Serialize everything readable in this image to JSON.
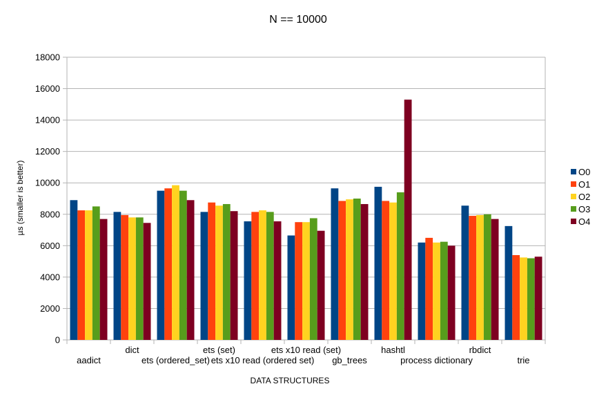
{
  "chart_data": {
    "type": "bar",
    "title": "N == 10000",
    "xlabel": "DATA STRUCTURES",
    "ylabel": "µs (smaller is better)",
    "ylim": [
      0,
      18000
    ],
    "yticks": [
      0,
      2000,
      4000,
      6000,
      8000,
      10000,
      12000,
      14000,
      16000,
      18000
    ],
    "grid": true,
    "legend_position": "right",
    "categories": [
      "aadict",
      "dict",
      "ets (ordered_set)",
      "ets (set)",
      "ets x10 read (ordered set)",
      "ets x10 read (set)",
      "gb_trees",
      "hashtl",
      "process dictionary",
      "rbdict",
      "trie"
    ],
    "series": [
      {
        "name": "O0",
        "color": "#004586",
        "values": [
          8900,
          8150,
          9500,
          8150,
          7550,
          6650,
          9650,
          9750,
          6200,
          8550,
          7250
        ]
      },
      {
        "name": "O1",
        "color": "#ff420e",
        "values": [
          8250,
          7950,
          9650,
          8750,
          8150,
          7500,
          8850,
          8850,
          6500,
          7900,
          5400
        ]
      },
      {
        "name": "O2",
        "color": "#ffd320",
        "values": [
          8250,
          7800,
          9850,
          8550,
          8250,
          7500,
          8950,
          8750,
          6200,
          7950,
          5250
        ]
      },
      {
        "name": "O3",
        "color": "#579d1c",
        "values": [
          8500,
          7800,
          9500,
          8650,
          8150,
          7750,
          9000,
          9400,
          6250,
          8000,
          5200
        ]
      },
      {
        "name": "O4",
        "color": "#7e0021",
        "values": [
          7700,
          7450,
          8900,
          8200,
          7550,
          6950,
          8650,
          15300,
          6000,
          7700,
          5300
        ]
      }
    ]
  }
}
